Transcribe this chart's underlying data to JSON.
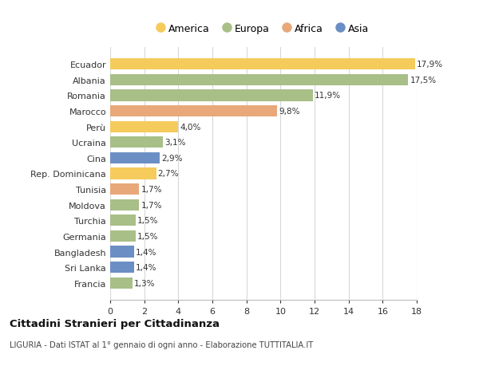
{
  "countries": [
    "Francia",
    "Sri Lanka",
    "Bangladesh",
    "Germania",
    "Turchia",
    "Moldova",
    "Tunisia",
    "Rep. Dominicana",
    "Cina",
    "Ucraina",
    "Perù",
    "Marocco",
    "Romania",
    "Albania",
    "Ecuador"
  ],
  "values": [
    1.3,
    1.4,
    1.4,
    1.5,
    1.5,
    1.7,
    1.7,
    2.7,
    2.9,
    3.1,
    4.0,
    9.8,
    11.9,
    17.5,
    17.9
  ],
  "labels": [
    "1,3%",
    "1,4%",
    "1,4%",
    "1,5%",
    "1,5%",
    "1,7%",
    "1,7%",
    "2,7%",
    "2,9%",
    "3,1%",
    "4,0%",
    "9,8%",
    "11,9%",
    "17,5%",
    "17,9%"
  ],
  "continents": [
    "Europa",
    "Asia",
    "Asia",
    "Europa",
    "Europa",
    "Europa",
    "Africa",
    "America",
    "Asia",
    "Europa",
    "America",
    "Africa",
    "Europa",
    "Europa",
    "America"
  ],
  "colors": {
    "America": "#F5CB5C",
    "Europa": "#A8BF87",
    "Africa": "#E8A87A",
    "Asia": "#6B8FC4"
  },
  "title": "Cittadini Stranieri per Cittadinanza",
  "subtitle": "LIGURIA - Dati ISTAT al 1° gennaio di ogni anno - Elaborazione TUTTITALIA.IT",
  "xlim": [
    0,
    18
  ],
  "xticks": [
    0,
    2,
    4,
    6,
    8,
    10,
    12,
    14,
    16,
    18
  ],
  "background_color": "#ffffff",
  "grid_color": "#d8d8d8"
}
